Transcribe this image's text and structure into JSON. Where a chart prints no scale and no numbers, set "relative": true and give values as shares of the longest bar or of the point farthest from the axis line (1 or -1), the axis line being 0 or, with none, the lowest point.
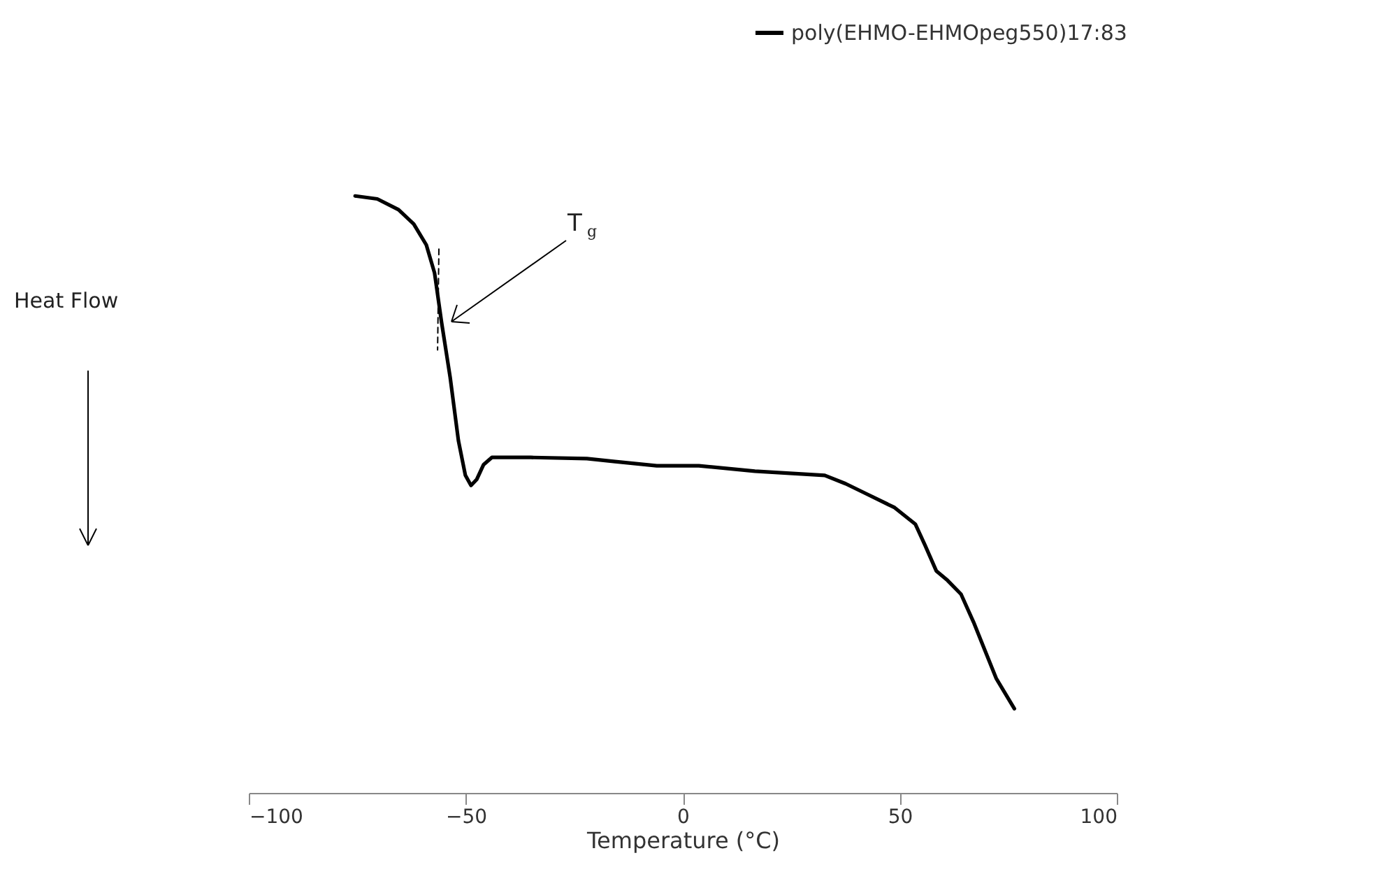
{
  "chart_data": {
    "type": "line",
    "relative": true,
    "xlabel": "Temperature (°C)",
    "xlim": [
      -100,
      100
    ],
    "xticks": [
      -100,
      -50,
      0,
      50,
      100
    ],
    "grid": false,
    "legend": "top right",
    "line_style": "solid",
    "marker": "none",
    "series": [
      {
        "name": "poly(EHMO-EHMOpeg550)17:83",
        "color": "#000000",
        "x": [
          -75.5,
          -70.4,
          -65.5,
          -62,
          -59.1,
          -57.2,
          -55.6,
          -53.6,
          -51.7,
          -50.1,
          -48.8,
          -47.5,
          -45.9,
          -44,
          -35,
          -22.1,
          -15.6,
          -6,
          3.7,
          16.6,
          32.7,
          37.5,
          42.3,
          48.8,
          53.6,
          55.8,
          58.4,
          61,
          64.1,
          67,
          69.6,
          72.2,
          76.4
        ],
        "values": [
          1,
          0.995,
          0.977,
          0.953,
          0.918,
          0.871,
          0.789,
          0.696,
          0.59,
          0.532,
          0.515,
          0.525,
          0.55,
          0.562,
          0.562,
          0.56,
          0.555,
          0.548,
          0.548,
          0.539,
          0.532,
          0.518,
          0.501,
          0.478,
          0.45,
          0.415,
          0.372,
          0.356,
          0.333,
          0.286,
          0.239,
          0.192,
          0.141
        ]
      },
      {
        "color": "#000000",
        "line_style": "dashed",
        "x": [
          -56.2,
          -56.5
        ],
        "values": [
          0.911,
          0.742
        ]
      }
    ],
    "annotations": [
      "Heat Flow",
      "T$_{g}$"
    ]
  }
}
